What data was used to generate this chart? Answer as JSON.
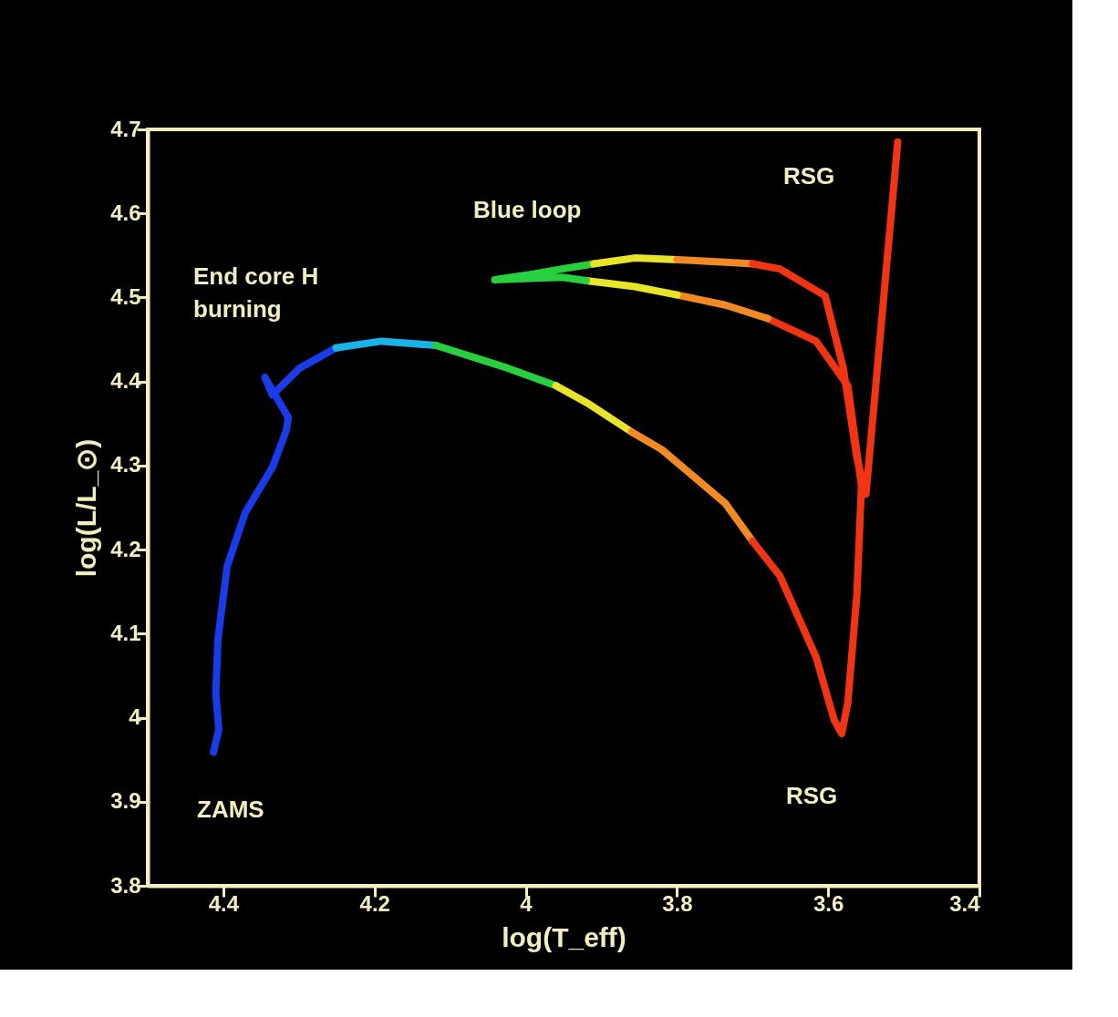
{
  "chart_data": {
    "type": "line",
    "xlabel": "log(T_eff)",
    "ylabel": "log(L/L_⊙)",
    "xlim": [
      4.5,
      3.4
    ],
    "xticks": [
      4.4,
      4.2,
      4,
      3.8,
      3.6,
      3.4
    ],
    "ylim": [
      3.8,
      4.7
    ],
    "yticks": [
      3.8,
      3.9,
      4,
      4.1,
      4.2,
      4.3,
      4.4,
      4.5,
      4.6,
      4.7
    ],
    "grid": false,
    "legend": false,
    "line_style": "solid",
    "marker": "none",
    "series": [
      {
        "color": "#1a3ce8",
        "x": [
          4.413,
          4.406,
          4.41,
          4.407,
          4.395,
          4.371,
          4.335,
          4.317,
          4.314,
          4.345,
          4.335,
          4.299,
          4.251
        ],
        "values": [
          3.959,
          3.986,
          4.03,
          4.094,
          4.18,
          4.244,
          4.298,
          4.341,
          4.357,
          4.405,
          4.384,
          4.416,
          4.44
        ]
      },
      {
        "color": "#18b4e8",
        "x": [
          4.251,
          4.191,
          4.119
        ],
        "values": [
          4.44,
          4.448,
          4.443
        ]
      },
      {
        "color": "#28d040",
        "x": [
          4.119,
          4.024,
          3.96
        ],
        "values": [
          4.443,
          4.416,
          4.395
        ]
      },
      {
        "color": "#e8e428",
        "x": [
          3.96,
          3.916,
          3.86
        ],
        "values": [
          4.395,
          4.373,
          4.34
        ]
      },
      {
        "color": "#f28a24",
        "x": [
          3.86,
          3.82,
          3.736,
          3.7
        ],
        "values": [
          4.34,
          4.319,
          4.255,
          4.21
        ]
      },
      {
        "color": "#f03414",
        "x": [
          3.7,
          3.664,
          3.616,
          3.592,
          3.582,
          3.574,
          3.562,
          3.556,
          3.574,
          3.616,
          3.68
        ],
        "values": [
          4.21,
          4.169,
          4.072,
          3.997,
          3.981,
          4.018,
          4.147,
          4.276,
          4.395,
          4.448,
          4.475
        ]
      },
      {
        "color": "#f28a24",
        "x": [
          3.68,
          3.736,
          3.8
        ],
        "values": [
          4.475,
          4.491,
          4.503
        ]
      },
      {
        "color": "#e8e428",
        "x": [
          3.8,
          3.856,
          3.92
        ],
        "values": [
          4.503,
          4.513,
          4.52
        ]
      },
      {
        "color": "#28d040",
        "x": [
          3.92,
          3.952,
          4.041,
          3.99,
          3.952,
          3.91
        ],
        "values": [
          4.52,
          4.524,
          4.521,
          4.528,
          4.534,
          4.54
        ]
      },
      {
        "color": "#e8e428",
        "x": [
          3.91,
          3.856,
          3.8
        ],
        "values": [
          4.54,
          4.547,
          4.545
        ]
      },
      {
        "color": "#f28a24",
        "x": [
          3.8,
          3.736,
          3.7
        ],
        "values": [
          4.545,
          4.542,
          4.54
        ]
      },
      {
        "color": "#f03414",
        "x": [
          3.7,
          3.664,
          3.604,
          3.58,
          3.562,
          3.55,
          3.508
        ],
        "values": [
          4.54,
          4.534,
          4.502,
          4.416,
          4.309,
          4.266,
          4.685
        ]
      }
    ],
    "annotations": [
      "ZAMS",
      "End core H\nburning",
      "Blue loop",
      "RSG",
      "RSG"
    ]
  }
}
